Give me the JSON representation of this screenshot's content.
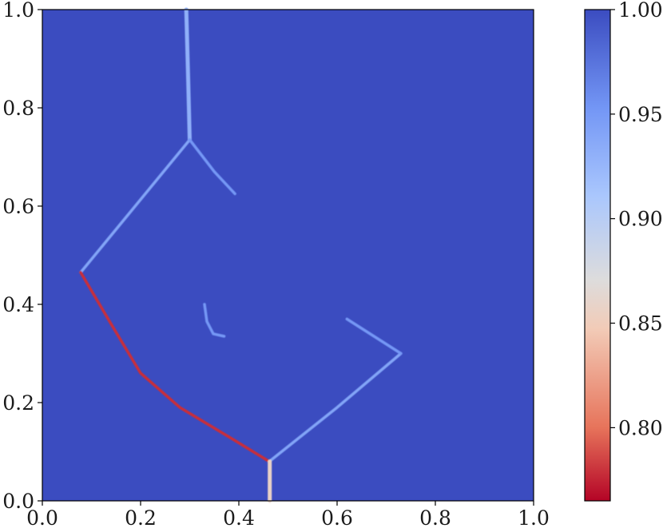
{
  "chart_data": {
    "type": "heatmap",
    "title": "",
    "xlabel": "",
    "ylabel": "",
    "xlim": [
      0.0,
      1.0
    ],
    "ylim": [
      0.0,
      1.0
    ],
    "x_ticks": [
      "0.0",
      "0.2",
      "0.4",
      "0.6",
      "0.8",
      "1.0"
    ],
    "y_ticks": [
      "0.0",
      "0.2",
      "0.4",
      "0.6",
      "0.8",
      "1.0"
    ],
    "grid": false,
    "background_value": 1.0,
    "colormap": "coolwarm_r",
    "colorbar": {
      "range": [
        0.765,
        1.0
      ],
      "ticks": [
        "0.80",
        "0.85",
        "0.90",
        "0.95",
        "1.00"
      ],
      "tick_values": [
        0.8,
        0.85,
        0.9,
        0.95,
        1.0
      ],
      "position": "right"
    },
    "features": [
      {
        "name": "vertical-jet-top",
        "points": [
          [
            0.293,
            1.0
          ],
          [
            0.297,
            0.85
          ],
          [
            0.3,
            0.735
          ]
        ],
        "value": 0.94
      },
      {
        "name": "upper-left-front",
        "points": [
          [
            0.3,
            0.735
          ],
          [
            0.078,
            0.465
          ]
        ],
        "value": 0.95
      },
      {
        "name": "upper-right-branch",
        "points": [
          [
            0.3,
            0.735
          ],
          [
            0.35,
            0.67
          ],
          [
            0.392,
            0.625
          ]
        ],
        "value": 0.96
      },
      {
        "name": "lower-left-front",
        "points": [
          [
            0.078,
            0.465
          ],
          [
            0.14,
            0.36
          ],
          [
            0.2,
            0.26
          ],
          [
            0.28,
            0.19
          ],
          [
            0.38,
            0.13
          ],
          [
            0.462,
            0.08
          ]
        ],
        "value": 0.78
      },
      {
        "name": "lower-right-front",
        "points": [
          [
            0.462,
            0.08
          ],
          [
            0.6,
            0.19
          ],
          [
            0.73,
            0.3
          ]
        ],
        "value": 0.95
      },
      {
        "name": "right-edge-front",
        "points": [
          [
            0.73,
            0.3
          ],
          [
            0.62,
            0.37
          ]
        ],
        "value": 0.96
      },
      {
        "name": "vertical-jet-bottom",
        "points": [
          [
            0.463,
            0.0
          ],
          [
            0.463,
            0.08
          ]
        ],
        "value": 0.86
      },
      {
        "name": "interior-filament",
        "points": [
          [
            0.33,
            0.4
          ],
          [
            0.335,
            0.365
          ],
          [
            0.348,
            0.34
          ],
          [
            0.37,
            0.335
          ]
        ],
        "value": 0.96
      }
    ],
    "colors": {
      "background": "#3b4cc0",
      "cmap_stops": [
        "#b40426",
        "#e7745b",
        "#f2cbb7",
        "#dddcdc",
        "#aac7fd",
        "#7396f5",
        "#3b4cc0"
      ]
    }
  }
}
